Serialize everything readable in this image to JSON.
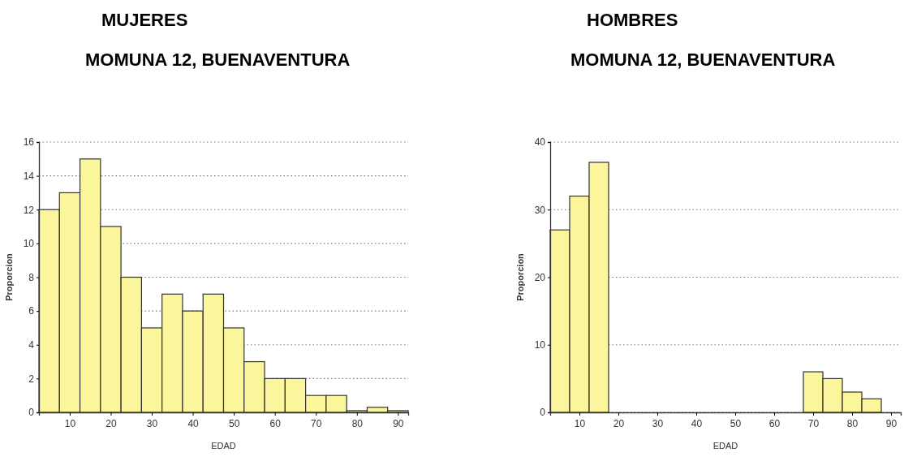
{
  "chart_data": [
    {
      "type": "histogram",
      "title": "MUJERES",
      "subtitle": "MOMUNA 12, BUENAVENTURA",
      "xlabel": "EDAD",
      "ylabel": "Proporcion",
      "color": "#fbf59c",
      "bins": [
        2.5,
        7.5,
        12.5,
        17.5,
        22.5,
        27.5,
        32.5,
        37.5,
        42.5,
        47.5,
        52.5,
        57.5,
        62.5,
        67.5,
        72.5,
        77.5,
        82.5,
        87.5,
        92.5
      ],
      "values": [
        12,
        13,
        15,
        11,
        8,
        5,
        7,
        6,
        7,
        5,
        3,
        2,
        2,
        1,
        1,
        0.1,
        0.3,
        0.1
      ],
      "xlim": [
        2.5,
        92.5
      ],
      "xticks": [
        10,
        20,
        30,
        40,
        50,
        60,
        70,
        80,
        90
      ],
      "ylim": [
        0,
        16
      ],
      "yticks": [
        0,
        2,
        4,
        6,
        8,
        10,
        12,
        14,
        16
      ],
      "grid": "y"
    },
    {
      "type": "histogram",
      "title": "HOMBRES",
      "subtitle": "MOMUNA 12, BUENAVENTURA",
      "xlabel": "EDAD",
      "ylabel": "Proporcion",
      "color": "#fbf59c",
      "bins": [
        2.5,
        7.5,
        12.5,
        17.5,
        22.5,
        27.5,
        32.5,
        37.5,
        42.5,
        47.5,
        52.5,
        57.5,
        62.5,
        67.5,
        72.5,
        77.5,
        82.5,
        87.5,
        92.5
      ],
      "values": [
        27,
        32,
        37,
        0,
        0,
        0,
        0,
        0,
        0,
        0,
        0,
        0,
        0,
        6,
        5,
        3,
        2,
        0
      ],
      "xlim": [
        2.5,
        92.5
      ],
      "xticks": [
        10,
        20,
        30,
        40,
        50,
        60,
        70,
        80,
        90
      ],
      "ylim": [
        0,
        40
      ],
      "yticks": [
        0,
        10,
        20,
        30,
        40
      ],
      "grid": "y"
    }
  ]
}
